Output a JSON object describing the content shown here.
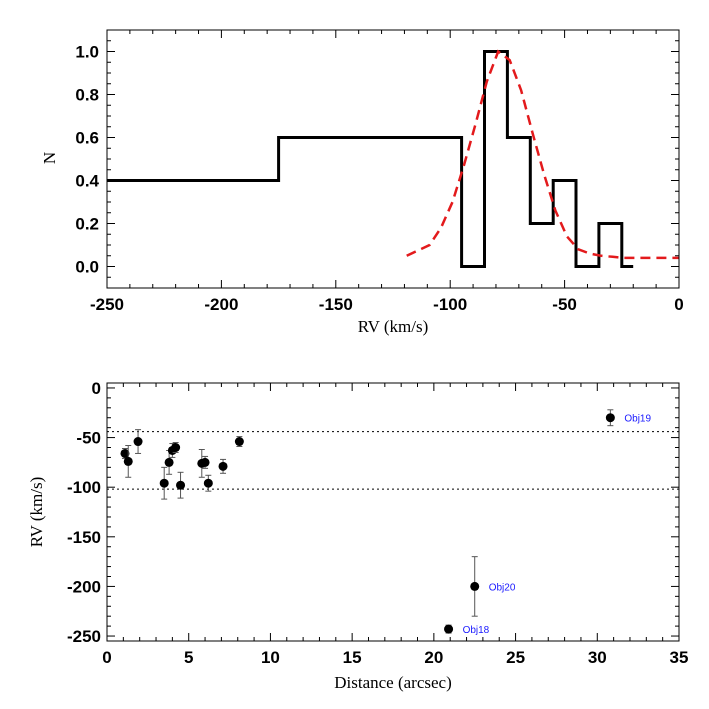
{
  "chart_data": [
    {
      "type": "line",
      "xlabel": "RV (km/s)",
      "ylabel": "N",
      "xlim": [
        -250,
        0
      ],
      "ylim": [
        -0.1,
        1.1
      ],
      "xticks": [
        "-250",
        "-200",
        "-150",
        "-100",
        "-50",
        "0"
      ],
      "yticks": [
        "0.0",
        "0.2",
        "0.4",
        "0.6",
        "0.8",
        "1.0"
      ],
      "series": [
        {
          "style": "histogram-step",
          "color": "#000000",
          "x": [
            -250,
            -175,
            -175,
            -95,
            -95,
            -85,
            -85,
            -75,
            -75,
            -65,
            -65,
            -55,
            -55,
            -45,
            -45,
            -35,
            -35,
            -25,
            -25,
            -20
          ],
          "y": [
            0.4,
            0.4,
            0.6,
            0.6,
            0.0,
            0.0,
            1.0,
            1.0,
            0.6,
            0.6,
            0.2,
            0.2,
            0.4,
            0.4,
            0.0,
            0.0,
            0.2,
            0.2,
            0.0,
            0.0
          ]
        },
        {
          "style": "dashed-curve",
          "color": "#e31a1c",
          "x": [
            -119,
            -109,
            -104,
            -99,
            -94,
            -89,
            -84,
            -79,
            -74,
            -69,
            -64,
            -59,
            -54,
            -49,
            -44,
            -39,
            -34,
            -29,
            -24,
            -19,
            -9,
            0
          ],
          "y": [
            0.05,
            0.1,
            0.18,
            0.3,
            0.47,
            0.66,
            0.86,
            1.0,
            0.96,
            0.82,
            0.62,
            0.43,
            0.26,
            0.14,
            0.08,
            0.06,
            0.05,
            0.045,
            0.04,
            0.04,
            0.04,
            0.04
          ]
        }
      ]
    },
    {
      "type": "scatter",
      "xlabel": "Distance (arcsec)",
      "ylabel": "RV (km/s)",
      "xlim": [
        0,
        35
      ],
      "ylim": [
        -255,
        5
      ],
      "xticks": [
        "0",
        "5",
        "10",
        "15",
        "20",
        "25",
        "30",
        "35"
      ],
      "yticks": [
        "0",
        "-50",
        "-100",
        "-150",
        "-200",
        "-250"
      ],
      "hlines": [
        -44,
        -102
      ],
      "points": [
        {
          "x": 1.1,
          "y": -66,
          "err": 5
        },
        {
          "x": 1.3,
          "y": -74,
          "err": 16
        },
        {
          "x": 1.9,
          "y": -54,
          "err": 12
        },
        {
          "x": 3.5,
          "y": -96,
          "err": 16
        },
        {
          "x": 3.8,
          "y": -75,
          "err": 12
        },
        {
          "x": 4.0,
          "y": -63,
          "err": 7
        },
        {
          "x": 4.2,
          "y": -60,
          "err": 5
        },
        {
          "x": 4.5,
          "y": -98,
          "err": 13
        },
        {
          "x": 5.8,
          "y": -76,
          "err": 14
        },
        {
          "x": 6.0,
          "y": -75,
          "err": 6
        },
        {
          "x": 6.2,
          "y": -96,
          "err": 8
        },
        {
          "x": 7.1,
          "y": -79,
          "err": 7
        },
        {
          "x": 8.1,
          "y": -54,
          "err": 5
        },
        {
          "x": 20.9,
          "y": -243,
          "err": 4,
          "label": "Obj18"
        },
        {
          "x": 22.5,
          "y": -200,
          "err": 30,
          "label": "Obj20"
        },
        {
          "x": 30.8,
          "y": -30,
          "err": 8,
          "label": "Obj19"
        }
      ],
      "label_color": "#1a1aff"
    }
  ]
}
